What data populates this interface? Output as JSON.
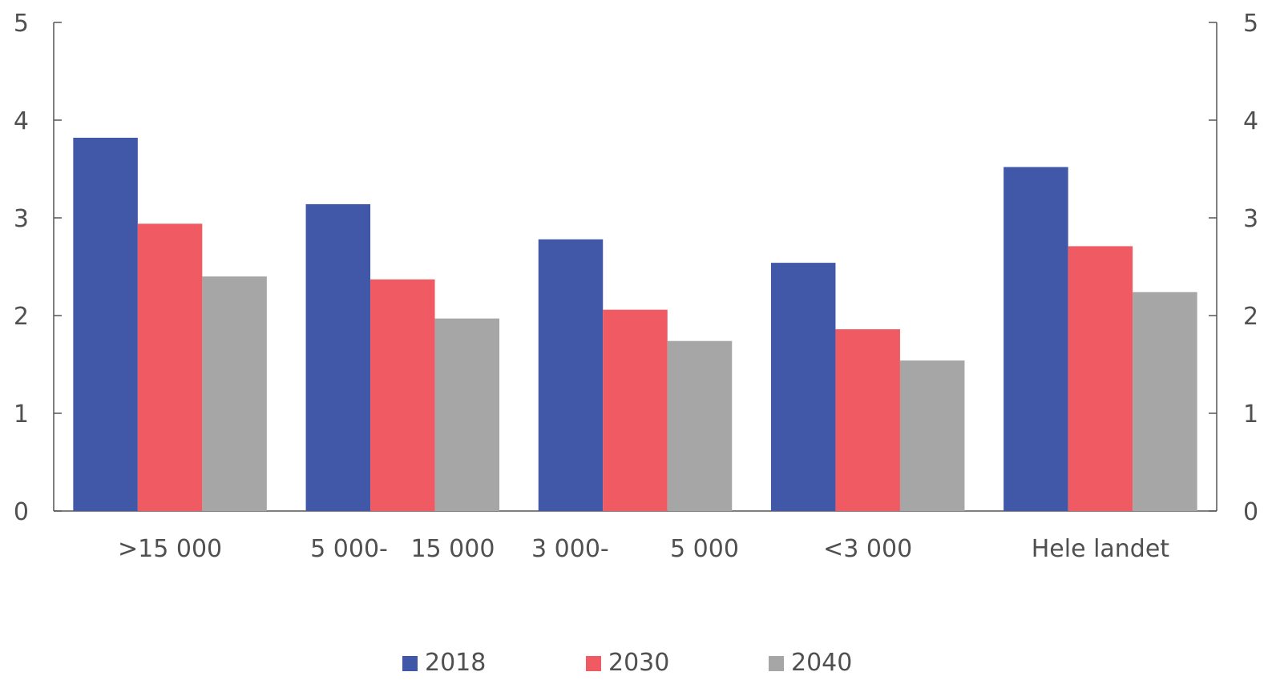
{
  "chart_data": {
    "type": "bar",
    "categories": [
      ">15 000",
      "5 000-   15 000",
      "3 000-        5 000",
      "<3 000",
      "Hele landet"
    ],
    "series": [
      {
        "name": "2018",
        "color": "#4157a7",
        "values": [
          3.82,
          3.14,
          2.78,
          2.54,
          3.52
        ]
      },
      {
        "name": "2030",
        "color": "#f05b63",
        "values": [
          2.94,
          2.37,
          2.06,
          1.86,
          2.71
        ]
      },
      {
        "name": "2040",
        "color": "#a6a6a6",
        "values": [
          2.4,
          1.97,
          1.74,
          1.54,
          2.24
        ]
      }
    ],
    "ylim": [
      0,
      5
    ],
    "yticks": [
      "0",
      "1",
      "2",
      "3",
      "4",
      "5"
    ],
    "right_axis": true,
    "legend_position": "bottom",
    "grid": false,
    "axis_color": "#555555"
  }
}
